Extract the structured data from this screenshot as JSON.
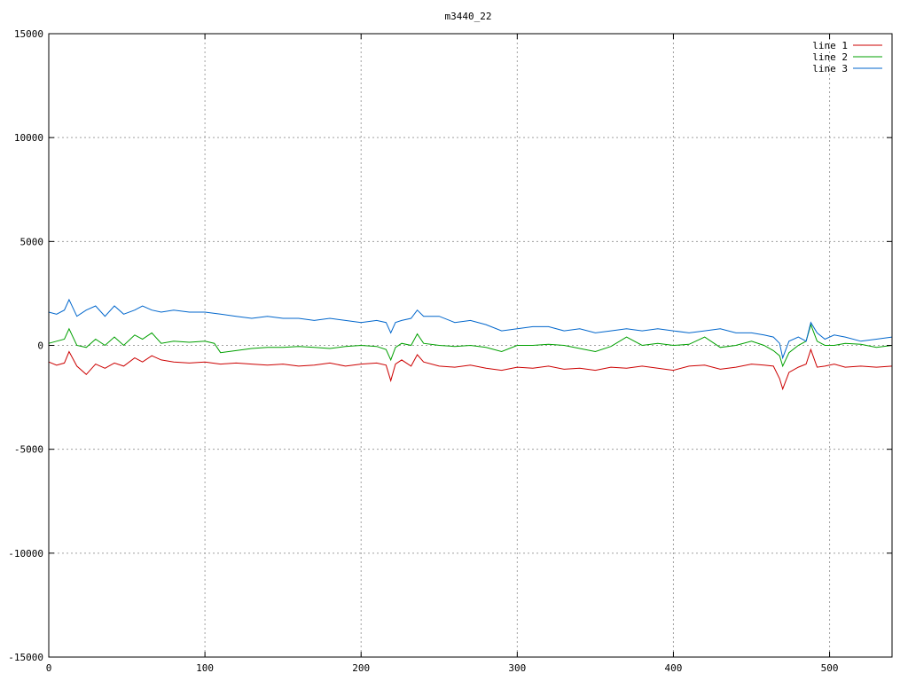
{
  "chart_data": {
    "type": "line",
    "title": "m3440_22",
    "xlabel": "",
    "ylabel": "",
    "xlim": [
      0,
      540
    ],
    "ylim": [
      -15000,
      15000
    ],
    "x_ticks": [
      0,
      100,
      200,
      300,
      400,
      500
    ],
    "y_ticks": [
      -15000,
      -10000,
      -5000,
      0,
      5000,
      10000,
      15000
    ],
    "grid": true,
    "legend_position": "top-right",
    "series": [
      {
        "name": "line 1",
        "color": "#cc0000",
        "x": [
          0,
          5,
          10,
          13,
          18,
          24,
          30,
          36,
          42,
          48,
          55,
          60,
          66,
          72,
          80,
          90,
          100,
          110,
          120,
          130,
          140,
          150,
          160,
          170,
          180,
          190,
          200,
          210,
          216,
          219,
          222,
          226,
          232,
          236,
          240,
          250,
          260,
          270,
          280,
          290,
          300,
          310,
          320,
          330,
          340,
          350,
          360,
          370,
          380,
          390,
          400,
          410,
          420,
          430,
          440,
          450,
          458,
          464,
          468,
          470,
          474,
          480,
          485,
          488,
          492,
          497,
          503,
          510,
          520,
          530,
          540
        ],
        "y": [
          -800,
          -950,
          -850,
          -300,
          -1000,
          -1400,
          -900,
          -1100,
          -850,
          -1000,
          -600,
          -800,
          -500,
          -700,
          -800,
          -850,
          -800,
          -900,
          -850,
          -900,
          -950,
          -900,
          -1000,
          -950,
          -850,
          -1000,
          -900,
          -850,
          -950,
          -1700,
          -900,
          -700,
          -1000,
          -450,
          -800,
          -1000,
          -1050,
          -950,
          -1100,
          -1200,
          -1050,
          -1100,
          -1000,
          -1150,
          -1100,
          -1200,
          -1050,
          -1100,
          -1000,
          -1100,
          -1200,
          -1000,
          -950,
          -1150,
          -1050,
          -900,
          -950,
          -1000,
          -1600,
          -2100,
          -1300,
          -1050,
          -900,
          -200,
          -1050,
          -1000,
          -900,
          -1050,
          -1000,
          -1050,
          -1000
        ]
      },
      {
        "name": "line 2",
        "color": "#00a000",
        "x": [
          0,
          5,
          10,
          13,
          18,
          24,
          30,
          36,
          42,
          48,
          55,
          60,
          66,
          72,
          80,
          90,
          100,
          106,
          110,
          120,
          130,
          140,
          150,
          160,
          170,
          180,
          190,
          200,
          210,
          216,
          219,
          222,
          226,
          232,
          236,
          240,
          250,
          260,
          270,
          280,
          290,
          300,
          310,
          320,
          330,
          340,
          350,
          360,
          370,
          380,
          390,
          400,
          410,
          420,
          430,
          440,
          450,
          458,
          464,
          468,
          470,
          474,
          480,
          485,
          488,
          492,
          497,
          503,
          510,
          520,
          530,
          540
        ],
        "y": [
          100,
          200,
          300,
          800,
          0,
          -100,
          300,
          0,
          400,
          0,
          500,
          300,
          600,
          100,
          200,
          150,
          200,
          100,
          -350,
          -250,
          -150,
          -100,
          -100,
          -50,
          -100,
          -150,
          -50,
          0,
          -50,
          -200,
          -700,
          -100,
          100,
          0,
          550,
          100,
          0,
          -50,
          0,
          -100,
          -300,
          0,
          0,
          50,
          0,
          -150,
          -300,
          -50,
          400,
          0,
          100,
          0,
          50,
          400,
          -100,
          0,
          200,
          0,
          -250,
          -500,
          -1000,
          -350,
          0,
          200,
          1000,
          200,
          0,
          0,
          100,
          50,
          -100,
          0
        ]
      },
      {
        "name": "line 3",
        "color": "#0066cc",
        "x": [
          0,
          5,
          10,
          13,
          18,
          24,
          30,
          36,
          42,
          48,
          55,
          60,
          66,
          72,
          80,
          90,
          100,
          110,
          120,
          130,
          140,
          150,
          160,
          170,
          180,
          190,
          200,
          210,
          216,
          219,
          222,
          226,
          232,
          236,
          240,
          250,
          260,
          270,
          280,
          290,
          300,
          310,
          320,
          330,
          340,
          350,
          360,
          370,
          380,
          390,
          400,
          410,
          420,
          430,
          440,
          450,
          458,
          464,
          468,
          470,
          474,
          480,
          485,
          488,
          492,
          497,
          503,
          510,
          520,
          530,
          540
        ],
        "y": [
          1600,
          1500,
          1700,
          2200,
          1400,
          1700,
          1900,
          1400,
          1900,
          1500,
          1700,
          1900,
          1700,
          1600,
          1700,
          1600,
          1600,
          1500,
          1400,
          1300,
          1400,
          1300,
          1300,
          1200,
          1300,
          1200,
          1100,
          1200,
          1100,
          600,
          1100,
          1200,
          1300,
          1700,
          1400,
          1400,
          1100,
          1200,
          1000,
          700,
          800,
          900,
          900,
          700,
          800,
          600,
          700,
          800,
          700,
          800,
          700,
          600,
          700,
          800,
          600,
          600,
          500,
          400,
          100,
          -600,
          200,
          400,
          200,
          1100,
          600,
          300,
          500,
          400,
          200,
          300,
          400
        ]
      }
    ]
  }
}
